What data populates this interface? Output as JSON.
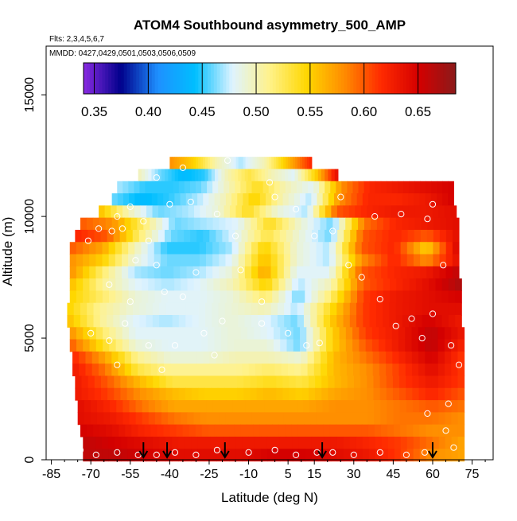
{
  "chart_data": {
    "type": "heatmap",
    "title": "ATOM4 Southbound asymmetry_500_AMP",
    "flights_label": "Flts: 2,3,4,5,6,7",
    "dates_label": "MMDD: 0427,0429,0501,0503,0506,0509",
    "xlabel": "Latitude (deg N)",
    "ylabel": "Altitude (m)",
    "xlim": [
      -87,
      83
    ],
    "ylim": [
      0,
      17000
    ],
    "x_ticks": [
      -85,
      -70,
      -55,
      -40,
      -25,
      -10,
      5,
      15,
      30,
      45,
      60,
      75
    ],
    "y_ticks": [
      0,
      5000,
      10000,
      15000
    ],
    "colorbar": {
      "range": [
        0.34,
        0.685
      ],
      "ticks": [
        "0.35",
        "0.40",
        "0.45",
        "0.50",
        "0.55",
        "0.60",
        "0.65"
      ],
      "tick_values": [
        0.35,
        0.4,
        0.45,
        0.5,
        0.55,
        0.6,
        0.65
      ],
      "colors": [
        "#8a2be2",
        "#00008b",
        "#1e90ff",
        "#00bfff",
        "#dff3ff",
        "#fff28a",
        "#ffd700",
        "#ff8c00",
        "#ff2a00",
        "#d40000",
        "#8b1a1a"
      ]
    },
    "profile_arrows_lat": [
      -50,
      -41,
      -19,
      18,
      60
    ],
    "rows": [
      {
        "alt": 12200,
        "lat_min": -40,
        "lat_max": 14,
        "values": [
          0.58,
          0.55,
          0.5,
          0.47,
          0.5,
          0.56,
          0.62
        ]
      },
      {
        "alt": 11700,
        "lat_min": -52,
        "lat_max": 24,
        "values": [
          0.5,
          0.46,
          0.44,
          0.45,
          0.5,
          0.53,
          0.5,
          0.48,
          0.55,
          0.64
        ]
      },
      {
        "alt": 11200,
        "lat_min": -60,
        "lat_max": 68,
        "values": [
          0.47,
          0.45,
          0.45,
          0.46,
          0.5,
          0.54,
          0.5,
          0.48,
          0.58,
          0.62,
          0.63,
          0.64,
          0.65
        ]
      },
      {
        "alt": 10700,
        "lat_min": -62,
        "lat_max": 68,
        "values": [
          0.46,
          0.44,
          0.45,
          0.47,
          0.5,
          0.55,
          0.5,
          0.47,
          0.58,
          0.62,
          0.62,
          0.63,
          0.65
        ]
      },
      {
        "alt": 10200,
        "lat_min": -67,
        "lat_max": 69,
        "values": [
          0.56,
          0.5,
          0.46,
          0.47,
          0.49,
          0.54,
          0.49,
          0.47,
          0.6,
          0.62,
          0.63,
          0.63,
          0.64
        ]
      },
      {
        "alt": 9700,
        "lat_min": -74,
        "lat_max": 70,
        "values": [
          0.6,
          0.58,
          0.52,
          0.46,
          0.47,
          0.48,
          0.54,
          0.49,
          0.46,
          0.59,
          0.62,
          0.63,
          0.64
        ]
      },
      {
        "alt": 9200,
        "lat_min": -76,
        "lat_max": 70,
        "values": [
          0.62,
          0.6,
          0.52,
          0.46,
          0.45,
          0.48,
          0.53,
          0.49,
          0.46,
          0.6,
          0.62,
          0.6,
          0.64
        ]
      },
      {
        "alt": 8700,
        "lat_min": -78,
        "lat_max": 70,
        "values": [
          0.6,
          0.57,
          0.5,
          0.45,
          0.45,
          0.47,
          0.55,
          0.49,
          0.47,
          0.6,
          0.62,
          0.55,
          0.65
        ]
      },
      {
        "alt": 8200,
        "lat_min": -78,
        "lat_max": 70,
        "values": [
          0.58,
          0.55,
          0.49,
          0.46,
          0.46,
          0.48,
          0.56,
          0.49,
          0.47,
          0.58,
          0.62,
          0.58,
          0.64
        ]
      },
      {
        "alt": 7700,
        "lat_min": -78,
        "lat_max": 70,
        "values": [
          0.58,
          0.52,
          0.47,
          0.46,
          0.47,
          0.49,
          0.57,
          0.48,
          0.48,
          0.6,
          0.62,
          0.63,
          0.66
        ]
      },
      {
        "alt": 7200,
        "lat_min": -78,
        "lat_max": 71,
        "values": [
          0.56,
          0.51,
          0.48,
          0.47,
          0.48,
          0.5,
          0.55,
          0.47,
          0.5,
          0.6,
          0.62,
          0.64,
          0.67
        ]
      },
      {
        "alt": 6700,
        "lat_min": -78,
        "lat_max": 71,
        "values": [
          0.55,
          0.52,
          0.49,
          0.48,
          0.48,
          0.49,
          0.52,
          0.46,
          0.52,
          0.61,
          0.63,
          0.64,
          0.65
        ]
      },
      {
        "alt": 6200,
        "lat_min": -79,
        "lat_max": 71,
        "values": [
          0.55,
          0.51,
          0.49,
          0.48,
          0.48,
          0.49,
          0.5,
          0.47,
          0.54,
          0.61,
          0.63,
          0.64,
          0.64
        ]
      },
      {
        "alt": 5700,
        "lat_min": -79,
        "lat_max": 71,
        "values": [
          0.56,
          0.51,
          0.48,
          0.47,
          0.48,
          0.49,
          0.48,
          0.46,
          0.55,
          0.61,
          0.63,
          0.65,
          0.63
        ]
      },
      {
        "alt": 5200,
        "lat_min": -78,
        "lat_max": 72,
        "values": [
          0.58,
          0.52,
          0.48,
          0.48,
          0.48,
          0.49,
          0.48,
          0.46,
          0.55,
          0.61,
          0.63,
          0.66,
          0.63
        ]
      },
      {
        "alt": 4700,
        "lat_min": -78,
        "lat_max": 72,
        "values": [
          0.6,
          0.54,
          0.49,
          0.48,
          0.48,
          0.49,
          0.49,
          0.46,
          0.55,
          0.6,
          0.63,
          0.66,
          0.62
        ]
      },
      {
        "alt": 4200,
        "lat_min": -77,
        "lat_max": 72,
        "values": [
          0.62,
          0.57,
          0.51,
          0.49,
          0.49,
          0.5,
          0.5,
          0.49,
          0.56,
          0.59,
          0.62,
          0.65,
          0.61
        ]
      },
      {
        "alt": 3700,
        "lat_min": -77,
        "lat_max": 72,
        "values": [
          0.63,
          0.59,
          0.53,
          0.51,
          0.51,
          0.51,
          0.52,
          0.51,
          0.56,
          0.58,
          0.61,
          0.64,
          0.61
        ]
      },
      {
        "alt": 3200,
        "lat_min": -76,
        "lat_max": 72,
        "values": [
          0.63,
          0.6,
          0.56,
          0.53,
          0.53,
          0.53,
          0.54,
          0.53,
          0.56,
          0.58,
          0.61,
          0.63,
          0.61
        ]
      },
      {
        "alt": 2700,
        "lat_min": -76,
        "lat_max": 72,
        "values": [
          0.63,
          0.61,
          0.58,
          0.56,
          0.55,
          0.55,
          0.56,
          0.55,
          0.57,
          0.58,
          0.6,
          0.62,
          0.6
        ]
      },
      {
        "alt": 2200,
        "lat_min": -75,
        "lat_max": 72,
        "values": [
          0.64,
          0.62,
          0.59,
          0.57,
          0.57,
          0.57,
          0.57,
          0.57,
          0.58,
          0.58,
          0.59,
          0.6,
          0.59
        ]
      },
      {
        "alt": 1700,
        "lat_min": -75,
        "lat_max": 72,
        "values": [
          0.64,
          0.63,
          0.61,
          0.59,
          0.58,
          0.58,
          0.58,
          0.58,
          0.58,
          0.58,
          0.59,
          0.59,
          0.58
        ]
      },
      {
        "alt": 1200,
        "lat_min": -74,
        "lat_max": 72,
        "values": [
          0.65,
          0.64,
          0.62,
          0.61,
          0.6,
          0.6,
          0.6,
          0.6,
          0.6,
          0.6,
          0.59,
          0.58,
          0.58
        ]
      },
      {
        "alt": 700,
        "lat_min": -73,
        "lat_max": 72,
        "values": [
          0.66,
          0.65,
          0.64,
          0.63,
          0.63,
          0.63,
          0.63,
          0.63,
          0.63,
          0.62,
          0.61,
          0.59,
          0.57
        ]
      },
      {
        "alt": 200,
        "lat_min": -73,
        "lat_max": 72,
        "values": [
          0.66,
          0.66,
          0.65,
          0.64,
          0.64,
          0.64,
          0.65,
          0.65,
          0.64,
          0.63,
          0.61,
          0.58,
          0.57
        ]
      }
    ],
    "points": [
      [
        -71,
        9000
      ],
      [
        -67,
        9500
      ],
      [
        -62,
        9400
      ],
      [
        -58,
        9500
      ],
      [
        -55,
        10400
      ],
      [
        -48,
        9000
      ],
      [
        -40,
        10500
      ],
      [
        -32,
        10600
      ],
      [
        -22,
        10100
      ],
      [
        -15,
        9200
      ],
      [
        -53,
        8200
      ],
      [
        -45,
        8000
      ],
      [
        -30,
        7700
      ],
      [
        -13,
        7800
      ],
      [
        -63,
        7200
      ],
      [
        -55,
        6500
      ],
      [
        -42,
        6900
      ],
      [
        -35,
        6700
      ],
      [
        -20,
        5700
      ],
      [
        -5,
        6500
      ],
      [
        -70,
        5200
      ],
      [
        -63,
        4900
      ],
      [
        -57,
        5600
      ],
      [
        -48,
        4700
      ],
      [
        -38,
        4700
      ],
      [
        -27,
        5200
      ],
      [
        -5,
        5600
      ],
      [
        5,
        5200
      ],
      [
        12,
        4700
      ],
      [
        17,
        4800
      ],
      [
        -60,
        3900
      ],
      [
        -43,
        3700
      ],
      [
        -23,
        4300
      ],
      [
        15,
        9200
      ],
      [
        22,
        9400
      ],
      [
        28,
        8000
      ],
      [
        33,
        7500
      ],
      [
        40,
        6600
      ],
      [
        46,
        5500
      ],
      [
        52,
        5800
      ],
      [
        56,
        5000
      ],
      [
        60,
        6000
      ],
      [
        67,
        4700
      ],
      [
        70,
        3900
      ],
      [
        64,
        8000
      ],
      [
        58,
        9900
      ],
      [
        48,
        10100
      ],
      [
        38,
        10000
      ],
      [
        25,
        10800
      ],
      [
        8,
        10300
      ],
      [
        -2,
        11400
      ],
      [
        -18,
        12300
      ],
      [
        -35,
        12000
      ],
      [
        -45,
        11600
      ],
      [
        -58,
        11700
      ],
      [
        60,
        10500
      ],
      [
        -74,
        400
      ],
      [
        -68,
        200
      ],
      [
        -60,
        300
      ],
      [
        -52,
        200
      ],
      [
        -45,
        200
      ],
      [
        -38,
        300
      ],
      [
        -30,
        200
      ],
      [
        -22,
        400
      ],
      [
        -10,
        300
      ],
      [
        0,
        400
      ],
      [
        8,
        200
      ],
      [
        16,
        300
      ],
      [
        22,
        300
      ],
      [
        30,
        200
      ],
      [
        40,
        300
      ],
      [
        50,
        200
      ],
      [
        57,
        300
      ],
      [
        68,
        500
      ],
      [
        65,
        1200
      ],
      [
        58,
        1900
      ],
      [
        66,
        2300
      ],
      [
        -60,
        10000
      ],
      [
        -50,
        9800
      ],
      [
        0,
        10800
      ]
    ]
  }
}
